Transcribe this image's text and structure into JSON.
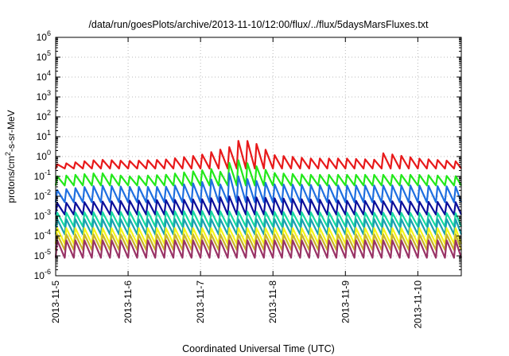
{
  "chart_data": {
    "type": "line",
    "title": "/data/run/goesPlots/archive/2013-11-10/12:00/flux/../flux/5daysMarsFluxes.txt",
    "xlabel": "Coordinated Universal Time (UTC)",
    "ylabel": {
      "base": "protons/cm",
      "sup": "2",
      "rest": "-s-sr-MeV"
    },
    "yscale": "log",
    "ylim": [
      1e-06,
      1000000.0
    ],
    "xlim": [
      "2013-11-05",
      "2013-11-10 14:24"
    ],
    "grid": true,
    "x_ticks": [
      "2013-11-5",
      "2013-11-6",
      "2013-11-7",
      "2013-11-8",
      "2013-11-9",
      "2013-11-10"
    ],
    "y_ticks": [
      {
        "exp": -6
      },
      {
        "exp": -5
      },
      {
        "exp": -4
      },
      {
        "exp": -3
      },
      {
        "exp": -2
      },
      {
        "exp": -1
      },
      {
        "exp": 0
      },
      {
        "exp": 1
      },
      {
        "exp": 2
      },
      {
        "exp": 3
      },
      {
        "exp": 4
      },
      {
        "exp": 5
      },
      {
        "exp": 6
      }
    ],
    "sawtooth_period_days": 0.125,
    "series": [
      {
        "color": "#e8191a",
        "low_value": 0.25,
        "x": [
          "2013-11-05 00:00",
          "2013-11-05 14:24",
          "2013-11-06 00:00",
          "2013-11-06 12:00",
          "2013-11-07 00:00",
          "2013-11-07 09:36",
          "2013-11-07 12:00",
          "2013-11-07 14:24",
          "2013-11-07 19:12",
          "2013-11-08 00:00",
          "2013-11-08 12:00",
          "2013-11-09 00:00",
          "2013-11-09 09:36",
          "2013-11-09 12:00",
          "2013-11-09 16:48",
          "2013-11-10 00:00",
          "2013-11-10 14:24"
        ],
        "peak": [
          0.4,
          0.7,
          0.6,
          0.7,
          1.2,
          3,
          6,
          7,
          4,
          1.2,
          0.8,
          0.8,
          0.7,
          1.5,
          1.2,
          0.8,
          0.55
        ]
      },
      {
        "color": "#22e81a",
        "low_value": 0.035,
        "x": [
          "2013-11-05 00:00",
          "2013-11-05 14:24",
          "2013-11-06 00:00",
          "2013-11-06 12:00",
          "2013-11-07 00:00",
          "2013-11-07 04:48",
          "2013-11-07 07:12",
          "2013-11-07 09:36",
          "2013-11-07 12:00",
          "2013-11-07 19:12",
          "2013-11-08 00:00",
          "2013-11-08 12:00",
          "2013-11-09 00:00",
          "2013-11-10 00:00",
          "2013-11-10 14:24"
        ],
        "peak": [
          0.1,
          0.15,
          0.1,
          0.12,
          0.2,
          0.25,
          0.15,
          0.5,
          0.7,
          0.3,
          0.15,
          0.12,
          0.12,
          0.12,
          0.1
        ]
      },
      {
        "color": "#1f6fe0",
        "low_value": 0.005,
        "x": [
          "2013-11-05 00:00",
          "2013-11-05 14:24",
          "2013-11-06 00:00",
          "2013-11-06 12:00",
          "2013-11-07 00:00",
          "2013-11-07 04:48",
          "2013-11-07 07:12",
          "2013-11-07 09:36",
          "2013-11-07 14:24",
          "2013-11-08 00:00",
          "2013-11-09 00:00",
          "2013-11-10 00:00",
          "2013-11-10 14:24"
        ],
        "peak": [
          0.02,
          0.035,
          0.03,
          0.03,
          0.05,
          0.08,
          0.03,
          0.15,
          0.08,
          0.04,
          0.035,
          0.035,
          0.03
        ]
      },
      {
        "color": "#0c0f9a",
        "low_value": 0.0012,
        "x": [
          "2013-11-05 00:00",
          "2013-11-06 00:00",
          "2013-11-07 00:00",
          "2013-11-07 09:36",
          "2013-11-08 00:00",
          "2013-11-09 00:00",
          "2013-11-10 14:24"
        ],
        "peak": [
          0.0045,
          0.006,
          0.007,
          0.01,
          0.008,
          0.006,
          0.005
        ]
      },
      {
        "color": "#18d8a0",
        "low_value": 0.0003,
        "x": [
          "2013-11-05 00:00",
          "2013-11-07 00:00",
          "2013-11-08 00:00",
          "2013-11-10 14:24"
        ],
        "peak": [
          0.0015,
          0.0018,
          0.0016,
          0.0014
        ]
      },
      {
        "color": "#1aa0b0",
        "low_value": 0.00012,
        "x": [
          "2013-11-05 00:00",
          "2013-11-10 14:24"
        ],
        "peak": [
          0.0007,
          0.0007
        ]
      },
      {
        "color": "#f5f51a",
        "low_value": 4e-05,
        "x": [
          "2013-11-05 00:00",
          "2013-11-10 14:24"
        ],
        "peak": [
          0.00025,
          0.00025
        ]
      },
      {
        "color": "#c8b428",
        "low_value": 2e-05,
        "x": [
          "2013-11-05 00:00",
          "2013-11-10 14:24"
        ],
        "peak": [
          0.00012,
          0.00012
        ]
      },
      {
        "color": "#993366",
        "low_value": 8e-06,
        "x": [
          "2013-11-05 00:00",
          "2013-11-10 14:24"
        ],
        "peak": [
          6e-05,
          6e-05
        ]
      }
    ]
  }
}
